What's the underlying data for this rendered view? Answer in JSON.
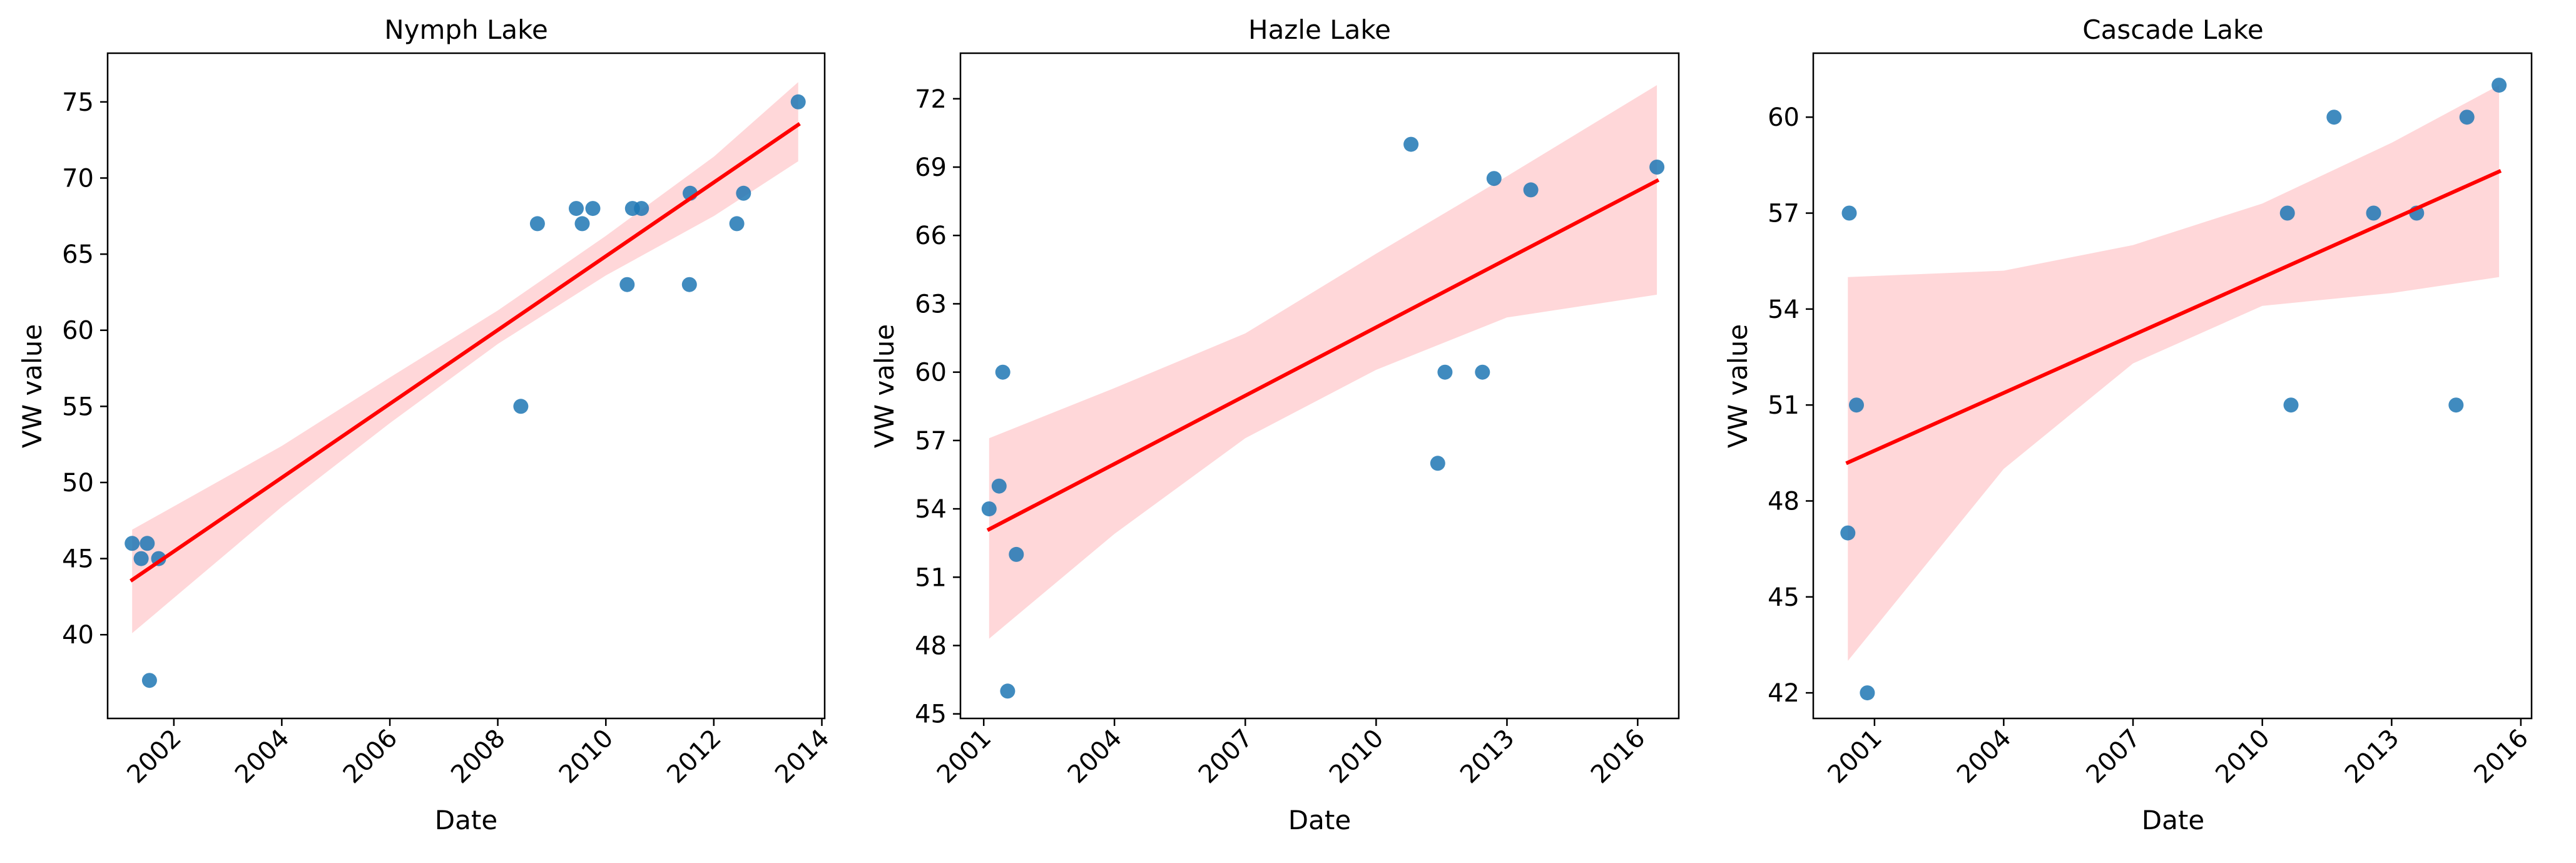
{
  "figure": {
    "panels": [
      {
        "title": "Nymph Lake",
        "xlabel": "Date",
        "ylabel": "VW value"
      },
      {
        "title": "Hazle Lake",
        "xlabel": "Date",
        "ylabel": "VW value"
      },
      {
        "title": "Cascade Lake",
        "xlabel": "Date",
        "ylabel": "VW value"
      }
    ]
  },
  "chart_data": [
    {
      "type": "scatter",
      "title": "Nymph Lake",
      "xlabel": "Date",
      "ylabel": "VW value",
      "x_scale": "date",
      "xlim": [
        "2000-10-10",
        "2014-01-20"
      ],
      "ylim": [
        34.5,
        78.2
      ],
      "xticks": [
        "2002",
        "2004",
        "2006",
        "2008",
        "2010",
        "2012",
        "2014"
      ],
      "yticks": [
        40,
        45,
        50,
        55,
        60,
        65,
        70,
        75
      ],
      "colors": {
        "points": "#1f77b4",
        "fit_line": "#ff0000",
        "confidence_band": "#ffb6b9"
      },
      "points": [
        {
          "x": "2001-03-25",
          "y": 46
        },
        {
          "x": "2001-05-25",
          "y": 45
        },
        {
          "x": "2001-07-05",
          "y": 46
        },
        {
          "x": "2001-07-20",
          "y": 37
        },
        {
          "x": "2001-09-20",
          "y": 45
        },
        {
          "x": "2008-06-05",
          "y": 55
        },
        {
          "x": "2008-09-25",
          "y": 67
        },
        {
          "x": "2009-06-15",
          "y": 68
        },
        {
          "x": "2009-07-25",
          "y": 67
        },
        {
          "x": "2009-10-05",
          "y": 68
        },
        {
          "x": "2010-05-25",
          "y": 63
        },
        {
          "x": "2010-06-30",
          "y": 68
        },
        {
          "x": "2010-08-30",
          "y": 68
        },
        {
          "x": "2011-07-20",
          "y": 63
        },
        {
          "x": "2011-07-25",
          "y": 69
        },
        {
          "x": "2012-06-05",
          "y": 67
        },
        {
          "x": "2012-07-20",
          "y": 69
        },
        {
          "x": "2013-07-25",
          "y": 75
        }
      ],
      "fit_line": [
        {
          "x": "2001-03-25",
          "y": 43.6
        },
        {
          "x": "2013-07-25",
          "y": 73.5
        }
      ],
      "confidence_band": [
        {
          "x": "2001-03-25",
          "lower": 40.1,
          "upper": 46.9
        },
        {
          "x": "2004-01-01",
          "lower": 48.4,
          "upper": 52.4
        },
        {
          "x": "2006-01-01",
          "lower": 53.9,
          "upper": 56.9
        },
        {
          "x": "2008-01-01",
          "lower": 59.1,
          "upper": 61.3
        },
        {
          "x": "2010-01-01",
          "lower": 63.6,
          "upper": 66.2
        },
        {
          "x": "2012-01-01",
          "lower": 67.5,
          "upper": 71.4
        },
        {
          "x": "2013-07-25",
          "lower": 71.1,
          "upper": 76.3
        }
      ]
    },
    {
      "type": "scatter",
      "title": "Hazle Lake",
      "xlabel": "Date",
      "ylabel": "VW value",
      "x_scale": "date",
      "xlim": [
        "2000-06-20",
        "2016-12-10"
      ],
      "ylim": [
        44.8,
        74.0
      ],
      "xticks": [
        "2001",
        "2004",
        "2007",
        "2010",
        "2013",
        "2016"
      ],
      "yticks": [
        45,
        48,
        51,
        54,
        57,
        60,
        63,
        66,
        69,
        72
      ],
      "colors": {
        "points": "#1f77b4",
        "fit_line": "#ff0000",
        "confidence_band": "#ffb6b9"
      },
      "points": [
        {
          "x": "2001-02-15",
          "y": 54
        },
        {
          "x": "2001-05-10",
          "y": 55
        },
        {
          "x": "2001-06-10",
          "y": 60
        },
        {
          "x": "2001-07-20",
          "y": 46
        },
        {
          "x": "2001-10-01",
          "y": 52
        },
        {
          "x": "2010-10-20",
          "y": 70
        },
        {
          "x": "2011-06-01",
          "y": 56
        },
        {
          "x": "2011-08-01",
          "y": 60
        },
        {
          "x": "2012-06-10",
          "y": 60
        },
        {
          "x": "2012-09-15",
          "y": 68.5
        },
        {
          "x": "2013-07-20",
          "y": 68
        },
        {
          "x": "2016-06-10",
          "y": 69
        }
      ],
      "fit_line": [
        {
          "x": "2001-02-15",
          "y": 53.1
        },
        {
          "x": "2016-06-10",
          "y": 68.4
        }
      ],
      "confidence_band": [
        {
          "x": "2001-02-15",
          "lower": 48.3,
          "upper": 57.1
        },
        {
          "x": "2004-01-01",
          "lower": 52.9,
          "upper": 59.3
        },
        {
          "x": "2007-01-01",
          "lower": 57.1,
          "upper": 61.7
        },
        {
          "x": "2010-01-01",
          "lower": 60.1,
          "upper": 65.2
        },
        {
          "x": "2013-01-01",
          "lower": 62.4,
          "upper": 68.6
        },
        {
          "x": "2016-06-10",
          "lower": 63.4,
          "upper": 72.6
        }
      ]
    },
    {
      "type": "scatter",
      "title": "Cascade Lake",
      "xlabel": "Date",
      "ylabel": "VW value",
      "x_scale": "date",
      "xlim": [
        "1999-08-01",
        "2016-04-01"
      ],
      "ylim": [
        41.2,
        62.0
      ],
      "xticks": [
        "2001",
        "2004",
        "2007",
        "2010",
        "2013",
        "2016"
      ],
      "yticks": [
        42,
        45,
        48,
        51,
        54,
        57,
        60
      ],
      "colors": {
        "points": "#1f77b4",
        "fit_line": "#ff0000",
        "confidence_band": "#ffb6b9"
      },
      "points": [
        {
          "x": "2000-05-20",
          "y": 47
        },
        {
          "x": "2000-06-01",
          "y": 57
        },
        {
          "x": "2000-08-01",
          "y": 51
        },
        {
          "x": "2000-11-01",
          "y": 42
        },
        {
          "x": "2010-08-01",
          "y": 57
        },
        {
          "x": "2010-09-01",
          "y": 51
        },
        {
          "x": "2011-09-01",
          "y": 60
        },
        {
          "x": "2012-08-01",
          "y": 57
        },
        {
          "x": "2013-08-01",
          "y": 57
        },
        {
          "x": "2014-07-01",
          "y": 51
        },
        {
          "x": "2014-10-01",
          "y": 60
        },
        {
          "x": "2015-07-01",
          "y": 61
        }
      ],
      "fit_line": [
        {
          "x": "2000-05-20",
          "y": 49.2
        },
        {
          "x": "2015-07-01",
          "y": 58.3
        }
      ],
      "confidence_band": [
        {
          "x": "2000-05-20",
          "lower": 43.0,
          "upper": 55.0
        },
        {
          "x": "2004-01-01",
          "lower": 49.0,
          "upper": 55.2
        },
        {
          "x": "2007-01-01",
          "lower": 52.3,
          "upper": 56.0
        },
        {
          "x": "2010-01-01",
          "lower": 54.1,
          "upper": 57.3
        },
        {
          "x": "2013-01-01",
          "lower": 54.5,
          "upper": 59.2
        },
        {
          "x": "2015-07-01",
          "lower": 55.0,
          "upper": 61.0
        }
      ]
    }
  ]
}
